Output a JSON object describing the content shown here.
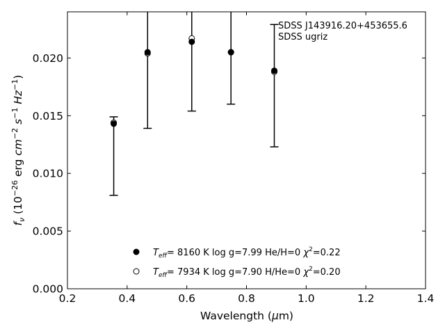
{
  "chart_data": {
    "type": "scatter",
    "title": "",
    "xlabel": "Wavelength (μm)",
    "ylabel": "f_ν (10^−26 erg cm^−2 s^−1 Hz^−1)",
    "xlim": [
      0.2,
      1.4
    ],
    "ylim": [
      0.0,
      0.024
    ],
    "xticks": [
      "0.2",
      "0.4",
      "0.6",
      "0.8",
      "1.0",
      "1.2",
      "1.4"
    ],
    "yticks": [
      "0.000",
      "0.005",
      "0.010",
      "0.015",
      "0.020"
    ],
    "grid": false,
    "annotation": {
      "object": "SDSS J143916.20+453655.6",
      "photometry": "SDSS ugriz"
    },
    "observed": {
      "x": [
        0.3551,
        0.4686,
        0.6166,
        0.748,
        0.8932
      ],
      "y": [
        0.0115,
        0.0204,
        0.0214,
        0.0204,
        0.0176
      ],
      "yerr": [
        0.0034,
        0.0065,
        0.006,
        0.0044,
        0.0053
      ]
    },
    "series": [
      {
        "name": "T_eff= 8160 K log g=7.99 He/H=0 χ²=0.22",
        "marker": "filled",
        "x": [
          0.3551,
          0.4686,
          0.6166,
          0.748,
          0.8932
        ],
        "y": [
          0.0143,
          0.0205,
          0.0214,
          0.0205,
          0.0189
        ]
      },
      {
        "name": "T_eff= 7934 K log g=7.90 H/He=0 χ²=0.20",
        "marker": "open",
        "x": [
          0.3551,
          0.4686,
          0.6166,
          0.748,
          0.8932
        ],
        "y": [
          0.0144,
          0.0204,
          0.0217,
          0.0205,
          0.0188
        ]
      }
    ],
    "legend": [
      {
        "marker": "filled",
        "teff_label": "T",
        "teff_sub": "eff",
        "teff_value": "=  8160 K",
        "logg": "log g=7.99",
        "comp": "He/H=0",
        "chi_label": "χ",
        "chi_sup": "2",
        "chi_value": "=0.22"
      },
      {
        "marker": "open",
        "teff_label": "T",
        "teff_sub": "eff",
        "teff_value": "=  7934 K",
        "logg": "log g=7.90",
        "comp": "H/He=0",
        "chi_label": "χ",
        "chi_sup": "2",
        "chi_value": "=0.20"
      }
    ],
    "legend_position": "lower-center"
  }
}
